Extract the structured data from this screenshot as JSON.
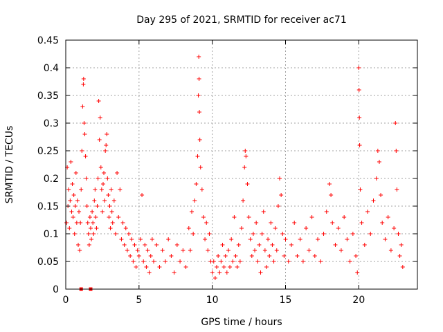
{
  "chart_data": {
    "type": "scatter",
    "title": "Day 295 of 2021, SRMTID for receiver ac71",
    "xlabel": "GPS time / hours",
    "ylabel": "SRMTID / TECUs",
    "xlim": [
      0,
      24
    ],
    "ylim": [
      0,
      0.45
    ],
    "xticks": [
      0,
      5,
      10,
      15,
      20
    ],
    "xtick_labels": [
      "0",
      "5",
      "10",
      "15",
      "20"
    ],
    "yticks": [
      0,
      0.05,
      0.1,
      0.15,
      0.2,
      0.25,
      0.3,
      0.35,
      0.4,
      0.45
    ],
    "ytick_labels": [
      "0",
      "0.05",
      "0.1",
      "0.15",
      "0.2",
      "0.25",
      "0.3",
      "0.35",
      "0.4",
      "0.45"
    ],
    "grid": true,
    "marker": "+",
    "color": "#ff0000",
    "series": [
      {
        "name": "SRMTID",
        "points": [
          [
            0.05,
            0.12
          ],
          [
            0.1,
            0.22
          ],
          [
            0.15,
            0.15
          ],
          [
            0.2,
            0.18
          ],
          [
            0.25,
            0.11
          ],
          [
            0.3,
            0.16
          ],
          [
            0.35,
            0.23
          ],
          [
            0.4,
            0.14
          ],
          [
            0.45,
            0.19
          ],
          [
            0.5,
            0.13
          ],
          [
            0.55,
            0.17
          ],
          [
            0.6,
            0.1
          ],
          [
            0.65,
            0.15
          ],
          [
            0.7,
            0.21
          ],
          [
            0.75,
            0.12
          ],
          [
            0.8,
            0.16
          ],
          [
            0.85,
            0.08
          ],
          [
            0.9,
            0.14
          ],
          [
            0.95,
            0.07
          ],
          [
            1.0,
            0.12
          ],
          [
            1.05,
            0.18
          ],
          [
            1.1,
            0.25
          ],
          [
            1.15,
            0.33
          ],
          [
            1.2,
            0.37
          ],
          [
            1.22,
            0.38
          ],
          [
            1.25,
            0.3
          ],
          [
            1.3,
            0.28
          ],
          [
            1.35,
            0.24
          ],
          [
            1.4,
            0.2
          ],
          [
            1.45,
            0.15
          ],
          [
            1.5,
            0.12
          ],
          [
            1.55,
            0.1
          ],
          [
            1.6,
            0.08
          ],
          [
            1.65,
            0.13
          ],
          [
            1.7,
            0.11
          ],
          [
            1.75,
            0.09
          ],
          [
            1.8,
            0.14
          ],
          [
            1.85,
            0.12
          ],
          [
            1.9,
            0.1
          ],
          [
            1.95,
            0.16
          ],
          [
            2.0,
            0.18
          ],
          [
            2.05,
            0.13
          ],
          [
            2.1,
            0.11
          ],
          [
            2.15,
            0.15
          ],
          [
            2.2,
            0.2
          ],
          [
            2.25,
            0.34
          ],
          [
            2.3,
            0.27
          ],
          [
            2.35,
            0.31
          ],
          [
            2.4,
            0.22
          ],
          [
            2.45,
            0.18
          ],
          [
            2.5,
            0.14
          ],
          [
            2.55,
            0.19
          ],
          [
            2.6,
            0.21
          ],
          [
            2.65,
            0.16
          ],
          [
            2.7,
            0.25
          ],
          [
            2.75,
            0.26
          ],
          [
            2.8,
            0.28
          ],
          [
            2.85,
            0.2
          ],
          [
            2.9,
            0.17
          ],
          [
            2.95,
            0.13
          ],
          [
            3.0,
            0.15
          ],
          [
            3.05,
            0.11
          ],
          [
            3.1,
            0.18
          ],
          [
            3.15,
            0.14
          ],
          [
            3.2,
            0.12
          ],
          [
            3.3,
            0.16
          ],
          [
            3.4,
            0.1
          ],
          [
            3.5,
            0.21
          ],
          [
            3.6,
            0.13
          ],
          [
            3.7,
            0.18
          ],
          [
            3.8,
            0.09
          ],
          [
            3.9,
            0.12
          ],
          [
            4.0,
            0.08
          ],
          [
            4.1,
            0.11
          ],
          [
            4.2,
            0.07
          ],
          [
            4.3,
            0.1
          ],
          [
            4.4,
            0.06
          ],
          [
            4.5,
            0.09
          ],
          [
            4.6,
            0.05
          ],
          [
            4.7,
            0.08
          ],
          [
            4.8,
            0.04
          ],
          [
            4.9,
            0.07
          ],
          [
            5.0,
            0.06
          ],
          [
            5.1,
            0.09
          ],
          [
            5.2,
            0.17
          ],
          [
            5.3,
            0.05
          ],
          [
            5.4,
            0.08
          ],
          [
            5.5,
            0.04
          ],
          [
            5.6,
            0.07
          ],
          [
            5.7,
            0.03
          ],
          [
            5.8,
            0.06
          ],
          [
            5.9,
            0.09
          ],
          [
            6.0,
            0.05
          ],
          [
            6.2,
            0.08
          ],
          [
            6.4,
            0.04
          ],
          [
            6.6,
            0.07
          ],
          [
            6.8,
            0.05
          ],
          [
            7.0,
            0.09
          ],
          [
            7.2,
            0.06
          ],
          [
            7.4,
            0.03
          ],
          [
            7.6,
            0.08
          ],
          [
            7.8,
            0.05
          ],
          [
            8.0,
            0.07
          ],
          [
            8.2,
            0.04
          ],
          [
            8.4,
            0.11
          ],
          [
            8.5,
            0.07
          ],
          [
            8.6,
            0.14
          ],
          [
            8.7,
            0.1
          ],
          [
            8.8,
            0.16
          ],
          [
            8.9,
            0.19
          ],
          [
            9.0,
            0.24
          ],
          [
            9.05,
            0.35
          ],
          [
            9.08,
            0.42
          ],
          [
            9.1,
            0.38
          ],
          [
            9.12,
            0.32
          ],
          [
            9.15,
            0.27
          ],
          [
            9.2,
            0.22
          ],
          [
            9.3,
            0.18
          ],
          [
            9.4,
            0.13
          ],
          [
            9.5,
            0.09
          ],
          [
            9.6,
            0.12
          ],
          [
            9.7,
            0.07
          ],
          [
            9.8,
            0.1
          ],
          [
            9.9,
            0.05
          ],
          [
            10.0,
            0.03
          ],
          [
            10.1,
            0.05
          ],
          [
            10.2,
            0.02
          ],
          [
            10.3,
            0.04
          ],
          [
            10.4,
            0.06
          ],
          [
            10.5,
            0.03
          ],
          [
            10.6,
            0.05
          ],
          [
            10.7,
            0.08
          ],
          [
            10.8,
            0.04
          ],
          [
            10.9,
            0.06
          ],
          [
            11.0,
            0.03
          ],
          [
            11.1,
            0.07
          ],
          [
            11.2,
            0.04
          ],
          [
            11.3,
            0.09
          ],
          [
            11.4,
            0.05
          ],
          [
            11.5,
            0.13
          ],
          [
            11.6,
            0.06
          ],
          [
            11.7,
            0.04
          ],
          [
            11.8,
            0.08
          ],
          [
            11.9,
            0.05
          ],
          [
            12.0,
            0.11
          ],
          [
            12.1,
            0.16
          ],
          [
            12.2,
            0.22
          ],
          [
            12.25,
            0.25
          ],
          [
            12.3,
            0.24
          ],
          [
            12.4,
            0.19
          ],
          [
            12.5,
            0.13
          ],
          [
            12.6,
            0.09
          ],
          [
            12.7,
            0.06
          ],
          [
            12.8,
            0.1
          ],
          [
            12.9,
            0.07
          ],
          [
            13.0,
            0.12
          ],
          [
            13.1,
            0.05
          ],
          [
            13.2,
            0.08
          ],
          [
            13.3,
            0.03
          ],
          [
            13.4,
            0.1
          ],
          [
            13.5,
            0.14
          ],
          [
            13.6,
            0.07
          ],
          [
            13.7,
            0.04
          ],
          [
            13.8,
            0.09
          ],
          [
            13.9,
            0.06
          ],
          [
            14.0,
            0.12
          ],
          [
            14.1,
            0.08
          ],
          [
            14.2,
            0.05
          ],
          [
            14.3,
            0.11
          ],
          [
            14.4,
            0.07
          ],
          [
            14.5,
            0.15
          ],
          [
            14.6,
            0.2
          ],
          [
            14.7,
            0.17
          ],
          [
            14.8,
            0.1
          ],
          [
            14.9,
            0.06
          ],
          [
            15.0,
            0.09
          ],
          [
            15.2,
            0.05
          ],
          [
            15.4,
            0.08
          ],
          [
            15.6,
            0.12
          ],
          [
            15.8,
            0.06
          ],
          [
            16.0,
            0.09
          ],
          [
            16.2,
            0.05
          ],
          [
            16.4,
            0.11
          ],
          [
            16.6,
            0.07
          ],
          [
            16.8,
            0.13
          ],
          [
            17.0,
            0.06
          ],
          [
            17.2,
            0.09
          ],
          [
            17.4,
            0.05
          ],
          [
            17.6,
            0.1
          ],
          [
            17.8,
            0.14
          ],
          [
            18.0,
            0.19
          ],
          [
            18.1,
            0.17
          ],
          [
            18.2,
            0.12
          ],
          [
            18.4,
            0.08
          ],
          [
            18.6,
            0.11
          ],
          [
            18.8,
            0.07
          ],
          [
            19.0,
            0.13
          ],
          [
            19.2,
            0.09
          ],
          [
            19.4,
            0.05
          ],
          [
            19.6,
            0.1
          ],
          [
            19.8,
            0.06
          ],
          [
            19.9,
            0.03
          ],
          [
            20.0,
            0.4
          ],
          [
            20.02,
            0.36
          ],
          [
            20.04,
            0.31
          ],
          [
            20.06,
            0.26
          ],
          [
            20.1,
            0.18
          ],
          [
            20.2,
            0.12
          ],
          [
            20.4,
            0.08
          ],
          [
            20.6,
            0.14
          ],
          [
            20.8,
            0.1
          ],
          [
            21.0,
            0.16
          ],
          [
            21.2,
            0.2
          ],
          [
            21.3,
            0.25
          ],
          [
            21.4,
            0.23
          ],
          [
            21.5,
            0.17
          ],
          [
            21.6,
            0.12
          ],
          [
            21.8,
            0.09
          ],
          [
            22.0,
            0.13
          ],
          [
            22.2,
            0.07
          ],
          [
            22.4,
            0.11
          ],
          [
            22.5,
            0.3
          ],
          [
            22.55,
            0.25
          ],
          [
            22.6,
            0.18
          ],
          [
            22.7,
            0.1
          ],
          [
            22.8,
            0.06
          ],
          [
            22.9,
            0.08
          ],
          [
            23.0,
            0.04
          ]
        ]
      }
    ],
    "markers_on_axis": [
      {
        "x": 1.05,
        "y": 0
      },
      {
        "x": 1.7,
        "y": 0
      }
    ]
  }
}
